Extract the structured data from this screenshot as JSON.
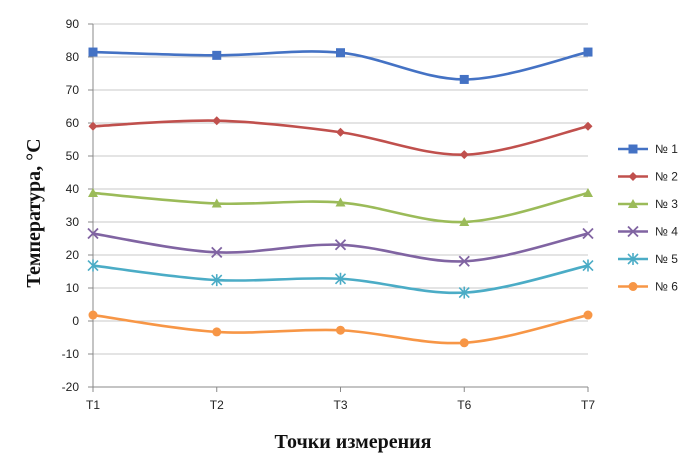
{
  "chart_data": {
    "type": "line",
    "xlabel": "Точки измерения",
    "ylabel": "Температура, °С",
    "ylim": [
      -20,
      90
    ],
    "y_ticks": [
      -20,
      -10,
      0,
      10,
      20,
      30,
      40,
      50,
      60,
      70,
      80,
      90
    ],
    "grid": true,
    "legend_position": "right",
    "smooth": true,
    "categories": [
      "T1",
      "T2",
      "T3",
      "T6",
      "T7"
    ],
    "series": [
      {
        "name": "№ 1",
        "color": "#4472C4",
        "marker": "square",
        "values": [
          81.5,
          80.5,
          81.3,
          73.2,
          81.5
        ]
      },
      {
        "name": "№ 2",
        "color": "#C0504D",
        "marker": "diamond",
        "values": [
          59.0,
          60.7,
          57.2,
          50.4,
          59.0
        ]
      },
      {
        "name": "№ 3",
        "color": "#9BBB59",
        "marker": "triangle",
        "values": [
          38.8,
          35.6,
          35.9,
          30.0,
          38.8
        ]
      },
      {
        "name": "№ 4",
        "color": "#8064A2",
        "marker": "x",
        "values": [
          26.5,
          20.8,
          23.1,
          18.1,
          26.5
        ]
      },
      {
        "name": "№ 5",
        "color": "#4BACC6",
        "marker": "star",
        "values": [
          16.8,
          12.4,
          12.8,
          8.6,
          16.8
        ]
      },
      {
        "name": "№ 6",
        "color": "#F79646",
        "marker": "circle",
        "values": [
          1.8,
          -3.3,
          -2.8,
          -6.6,
          1.8
        ]
      }
    ]
  }
}
